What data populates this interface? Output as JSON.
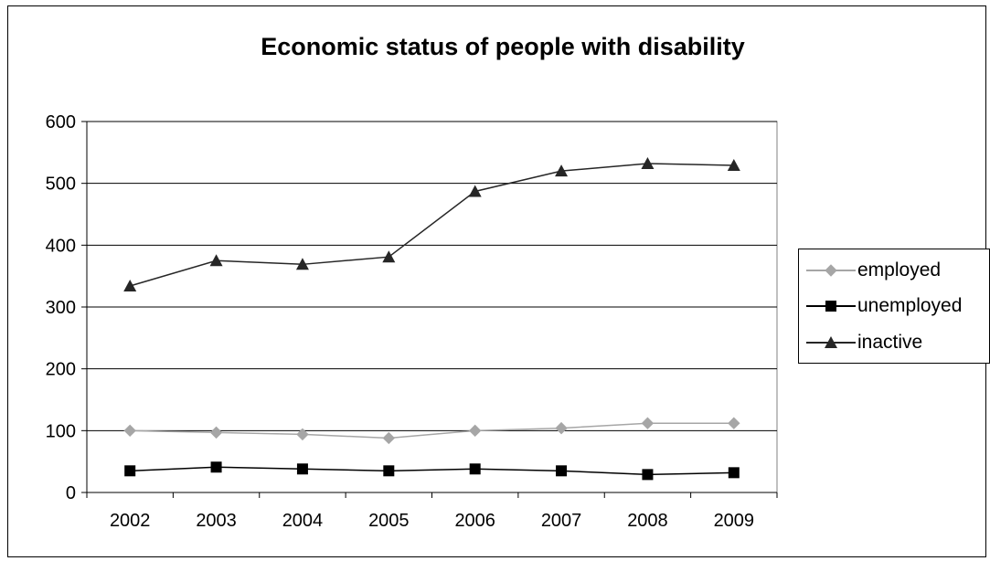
{
  "chart_data": {
    "type": "line",
    "title": "Economic status of people with disability",
    "xlabel": "",
    "ylabel": "",
    "x": [
      "2002",
      "2003",
      "2004",
      "2005",
      "2006",
      "2007",
      "2008",
      "2009"
    ],
    "ylim": [
      0,
      600
    ],
    "yticks": [
      "0",
      "100",
      "200",
      "300",
      "400",
      "500",
      "600"
    ],
    "grid": true,
    "legend_position": "right",
    "series": [
      {
        "name": "employed",
        "values": [
          100,
          97,
          94,
          88,
          100,
          104,
          112,
          112
        ],
        "color": "#a6a6a6",
        "marker": "diamond"
      },
      {
        "name": "unemployed",
        "values": [
          35,
          41,
          38,
          35,
          38,
          35,
          29,
          32
        ],
        "color": "#000000",
        "marker": "square"
      },
      {
        "name": "inactive",
        "values": [
          334,
          375,
          369,
          381,
          487,
          520,
          532,
          529
        ],
        "color": "#262626",
        "marker": "triangle"
      }
    ]
  }
}
